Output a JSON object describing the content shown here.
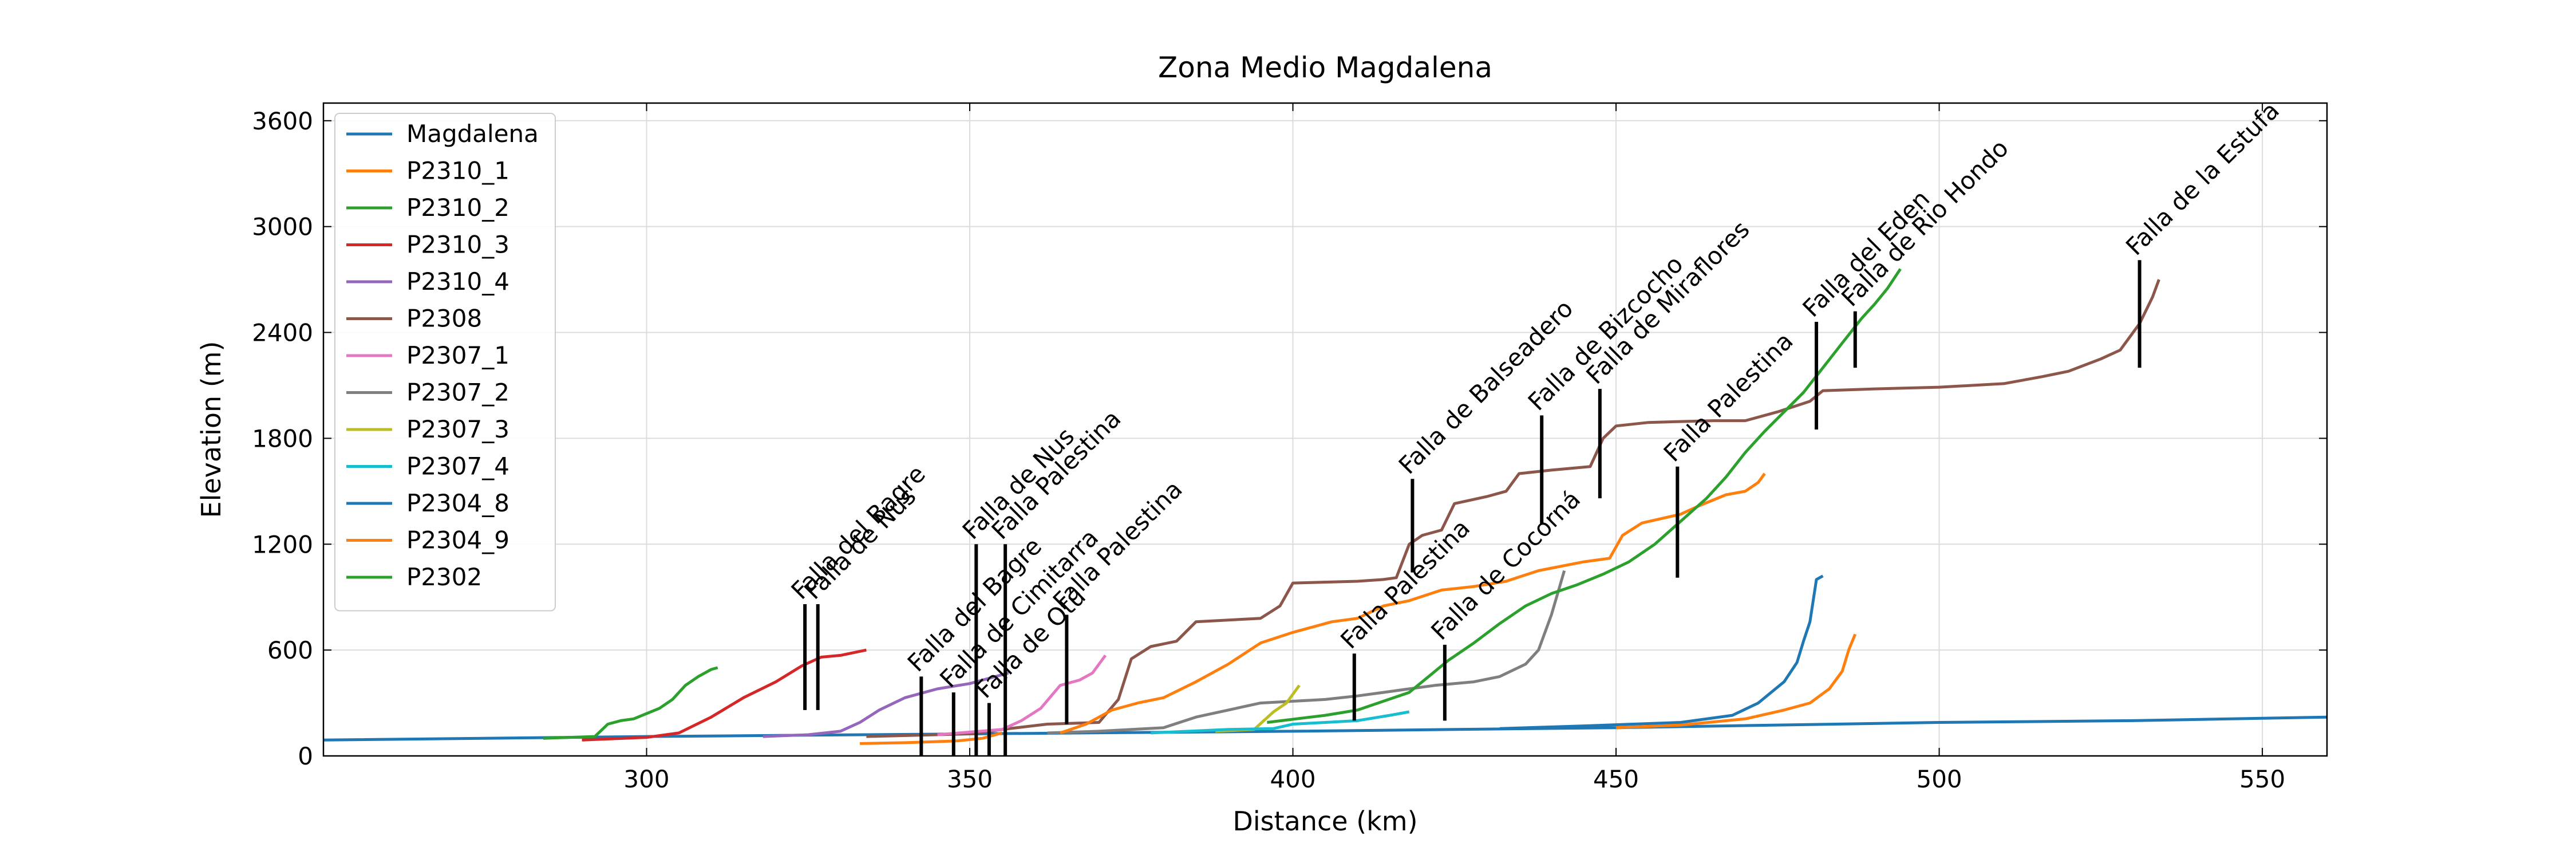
{
  "chart_data": {
    "type": "line",
    "title": "Zona Medio Magdalena",
    "xlabel": "Distance (km)",
    "ylabel": "Elevation (m)",
    "xlim": [
      250,
      560
    ],
    "ylim": [
      0,
      3700
    ],
    "xticks": [
      300,
      350,
      400,
      450,
      500,
      550
    ],
    "yticks": [
      0,
      600,
      1200,
      1800,
      2400,
      3000,
      3600
    ],
    "grid": true,
    "legend_position": "upper-left",
    "series": [
      {
        "name": "Magdalena",
        "color": "#1f77b4",
        "points": [
          [
            250,
            90
          ],
          [
            300,
            110
          ],
          [
            350,
            125
          ],
          [
            400,
            140
          ],
          [
            450,
            160
          ],
          [
            500,
            190
          ],
          [
            530,
            200
          ],
          [
            560,
            220
          ]
        ]
      },
      {
        "name": "P2310_1",
        "color": "#ff7f0e",
        "points": [
          [
            333,
            70
          ],
          [
            340,
            75
          ],
          [
            348,
            85
          ],
          [
            352,
            100
          ],
          [
            355,
            130
          ]
        ]
      },
      {
        "name": "P2310_2",
        "color": "#2ca02c",
        "points": [
          [
            284,
            100
          ],
          [
            292,
            110
          ],
          [
            294,
            180
          ],
          [
            296,
            200
          ],
          [
            298,
            210
          ],
          [
            300,
            240
          ],
          [
            302,
            270
          ],
          [
            304,
            320
          ],
          [
            306,
            400
          ],
          [
            308,
            450
          ],
          [
            310,
            490
          ],
          [
            311,
            500
          ]
        ]
      },
      {
        "name": "P2310_3",
        "color": "#d62728",
        "points": [
          [
            290,
            90
          ],
          [
            300,
            105
          ],
          [
            305,
            130
          ],
          [
            310,
            220
          ],
          [
            315,
            330
          ],
          [
            320,
            420
          ],
          [
            324,
            510
          ],
          [
            327,
            560
          ],
          [
            330,
            570
          ],
          [
            334,
            600
          ]
        ]
      },
      {
        "name": "P2310_4",
        "color": "#9467bd",
        "points": [
          [
            318,
            110
          ],
          [
            325,
            120
          ],
          [
            330,
            140
          ],
          [
            333,
            190
          ],
          [
            336,
            260
          ],
          [
            340,
            330
          ],
          [
            345,
            380
          ],
          [
            350,
            410
          ],
          [
            353,
            440
          ],
          [
            356,
            470
          ]
        ]
      },
      {
        "name": "P2308",
        "color": "#8c564b",
        "points": [
          [
            334,
            110
          ],
          [
            350,
            125
          ],
          [
            355,
            150
          ],
          [
            362,
            180
          ],
          [
            370,
            190
          ],
          [
            373,
            320
          ],
          [
            375,
            550
          ],
          [
            378,
            620
          ],
          [
            382,
            650
          ],
          [
            385,
            760
          ],
          [
            395,
            780
          ],
          [
            398,
            850
          ],
          [
            400,
            980
          ],
          [
            410,
            990
          ],
          [
            414,
            1000
          ],
          [
            416,
            1010
          ],
          [
            418,
            1200
          ],
          [
            420,
            1250
          ],
          [
            423,
            1280
          ],
          [
            425,
            1430
          ],
          [
            430,
            1470
          ],
          [
            433,
            1500
          ],
          [
            435,
            1600
          ],
          [
            440,
            1620
          ],
          [
            446,
            1640
          ],
          [
            448,
            1800
          ],
          [
            450,
            1870
          ],
          [
            455,
            1890
          ],
          [
            465,
            1900
          ],
          [
            470,
            1900
          ],
          [
            475,
            1950
          ],
          [
            480,
            2010
          ],
          [
            482,
            2070
          ],
          [
            490,
            2080
          ],
          [
            500,
            2090
          ],
          [
            510,
            2110
          ],
          [
            516,
            2150
          ],
          [
            520,
            2180
          ],
          [
            525,
            2250
          ],
          [
            528,
            2300
          ],
          [
            531,
            2450
          ],
          [
            533,
            2600
          ],
          [
            534,
            2700
          ]
        ]
      },
      {
        "name": "P2307_1",
        "color": "#e377c2",
        "points": [
          [
            345,
            120
          ],
          [
            350,
            135
          ],
          [
            355,
            150
          ],
          [
            358,
            200
          ],
          [
            361,
            270
          ],
          [
            364,
            400
          ],
          [
            367,
            430
          ],
          [
            369,
            470
          ],
          [
            371,
            570
          ]
        ]
      },
      {
        "name": "P2307_2",
        "color": "#7f7f7f",
        "points": [
          [
            362,
            130
          ],
          [
            370,
            140
          ],
          [
            380,
            160
          ],
          [
            385,
            220
          ],
          [
            390,
            260
          ],
          [
            395,
            300
          ],
          [
            400,
            310
          ],
          [
            405,
            320
          ],
          [
            410,
            340
          ],
          [
            414,
            360
          ],
          [
            418,
            380
          ],
          [
            422,
            400
          ],
          [
            428,
            420
          ],
          [
            432,
            450
          ],
          [
            436,
            520
          ],
          [
            438,
            600
          ],
          [
            440,
            800
          ],
          [
            442,
            1050
          ]
        ]
      },
      {
        "name": "P2307_3",
        "color": "#bcbd22",
        "points": [
          [
            388,
            140
          ],
          [
            394,
            150
          ],
          [
            397,
            250
          ],
          [
            399,
            300
          ],
          [
            401,
            400
          ]
        ]
      },
      {
        "name": "P2307_4",
        "color": "#17becf",
        "points": [
          [
            378,
            130
          ],
          [
            390,
            150
          ],
          [
            397,
            155
          ],
          [
            400,
            180
          ],
          [
            405,
            190
          ],
          [
            410,
            200
          ],
          [
            415,
            230
          ],
          [
            418,
            250
          ]
        ]
      },
      {
        "name": "P2304_8",
        "color": "#1f77b4",
        "points": [
          [
            432,
            155
          ],
          [
            445,
            170
          ],
          [
            460,
            190
          ],
          [
            468,
            230
          ],
          [
            472,
            300
          ],
          [
            474,
            360
          ],
          [
            476,
            420
          ],
          [
            478,
            530
          ],
          [
            479,
            650
          ],
          [
            480,
            760
          ],
          [
            481,
            1000
          ],
          [
            482,
            1020
          ]
        ]
      },
      {
        "name": "P2304_9",
        "color": "#ff7f0e",
        "points": [
          [
            364,
            130
          ],
          [
            368,
            180
          ],
          [
            372,
            260
          ],
          [
            376,
            300
          ],
          [
            380,
            330
          ],
          [
            385,
            420
          ],
          [
            390,
            520
          ],
          [
            395,
            640
          ],
          [
            400,
            700
          ],
          [
            406,
            760
          ],
          [
            410,
            780
          ],
          [
            414,
            850
          ],
          [
            418,
            880
          ],
          [
            423,
            940
          ],
          [
            428,
            960
          ],
          [
            433,
            990
          ],
          [
            438,
            1050
          ],
          [
            445,
            1100
          ],
          [
            449,
            1120
          ],
          [
            451,
            1250
          ],
          [
            454,
            1320
          ],
          [
            460,
            1370
          ],
          [
            463,
            1420
          ],
          [
            467,
            1480
          ],
          [
            470,
            1500
          ],
          [
            472,
            1550
          ],
          [
            473,
            1600
          ]
        ]
      },
      {
        "name": "P2302",
        "color": "#2ca02c",
        "points": [
          [
            396,
            190
          ],
          [
            405,
            230
          ],
          [
            410,
            260
          ],
          [
            414,
            310
          ],
          [
            418,
            360
          ],
          [
            421,
            450
          ],
          [
            424,
            540
          ],
          [
            428,
            640
          ],
          [
            432,
            750
          ],
          [
            436,
            850
          ],
          [
            440,
            920
          ],
          [
            444,
            970
          ],
          [
            448,
            1030
          ],
          [
            452,
            1100
          ],
          [
            456,
            1200
          ],
          [
            460,
            1330
          ],
          [
            464,
            1460
          ],
          [
            467,
            1580
          ],
          [
            470,
            1720
          ],
          [
            473,
            1840
          ],
          [
            476,
            1950
          ],
          [
            479,
            2060
          ],
          [
            482,
            2200
          ],
          [
            485,
            2340
          ],
          [
            488,
            2480
          ],
          [
            490,
            2560
          ],
          [
            492,
            2650
          ],
          [
            494,
            2760
          ]
        ]
      },
      {
        "name": "P2304_9",
        "color": "#ff7f0e",
        "points": [
          [
            450,
            160
          ],
          [
            460,
            175
          ],
          [
            470,
            210
          ],
          [
            476,
            260
          ],
          [
            480,
            300
          ],
          [
            483,
            380
          ],
          [
            485,
            480
          ],
          [
            486,
            600
          ],
          [
            487,
            690
          ]
        ]
      }
    ],
    "faults": [
      {
        "label": "Falla del Bagre",
        "x": 324.5,
        "y_bottom": 260,
        "y_top": 860
      },
      {
        "label": "Falla de Nus",
        "x": 326.5,
        "y_bottom": 260,
        "y_top": 860
      },
      {
        "label": "Falla del Bagre",
        "x": 342.5,
        "y_bottom": 0,
        "y_top": 450
      },
      {
        "label": "Falla de Cimitarra",
        "x": 347.5,
        "y_bottom": 0,
        "y_top": 360
      },
      {
        "label": "Falla de Nus",
        "x": 351,
        "y_bottom": 0,
        "y_top": 1200
      },
      {
        "label": "Falla de Otú",
        "x": 353,
        "y_bottom": 0,
        "y_top": 300
      },
      {
        "label": "Falla Palestina",
        "x": 355.5,
        "y_bottom": 0,
        "y_top": 1200
      },
      {
        "label": "Falla Palestina",
        "x": 365,
        "y_bottom": 180,
        "y_top": 800
      },
      {
        "label": "Falla Palestina",
        "x": 409.5,
        "y_bottom": 200,
        "y_top": 580
      },
      {
        "label": "Falla de Balseadero",
        "x": 418.5,
        "y_bottom": 1040,
        "y_top": 1570
      },
      {
        "label": "Falla de Cocorná",
        "x": 423.5,
        "y_bottom": 200,
        "y_top": 630
      },
      {
        "label": "Falla de Bizcocho",
        "x": 438.5,
        "y_bottom": 1310,
        "y_top": 1930
      },
      {
        "label": "Falla de Miraflores",
        "x": 447.5,
        "y_bottom": 1460,
        "y_top": 2080
      },
      {
        "label": "Falla Palestina",
        "x": 459.5,
        "y_bottom": 1010,
        "y_top": 1640
      },
      {
        "label": "Falla del Eden",
        "x": 481,
        "y_bottom": 1850,
        "y_top": 2460
      },
      {
        "label": "Falla de Rio Hondo",
        "x": 487,
        "y_bottom": 2200,
        "y_top": 2520
      },
      {
        "label": "Falla de la Estufa",
        "x": 531,
        "y_bottom": 2200,
        "y_top": 2810
      }
    ]
  }
}
